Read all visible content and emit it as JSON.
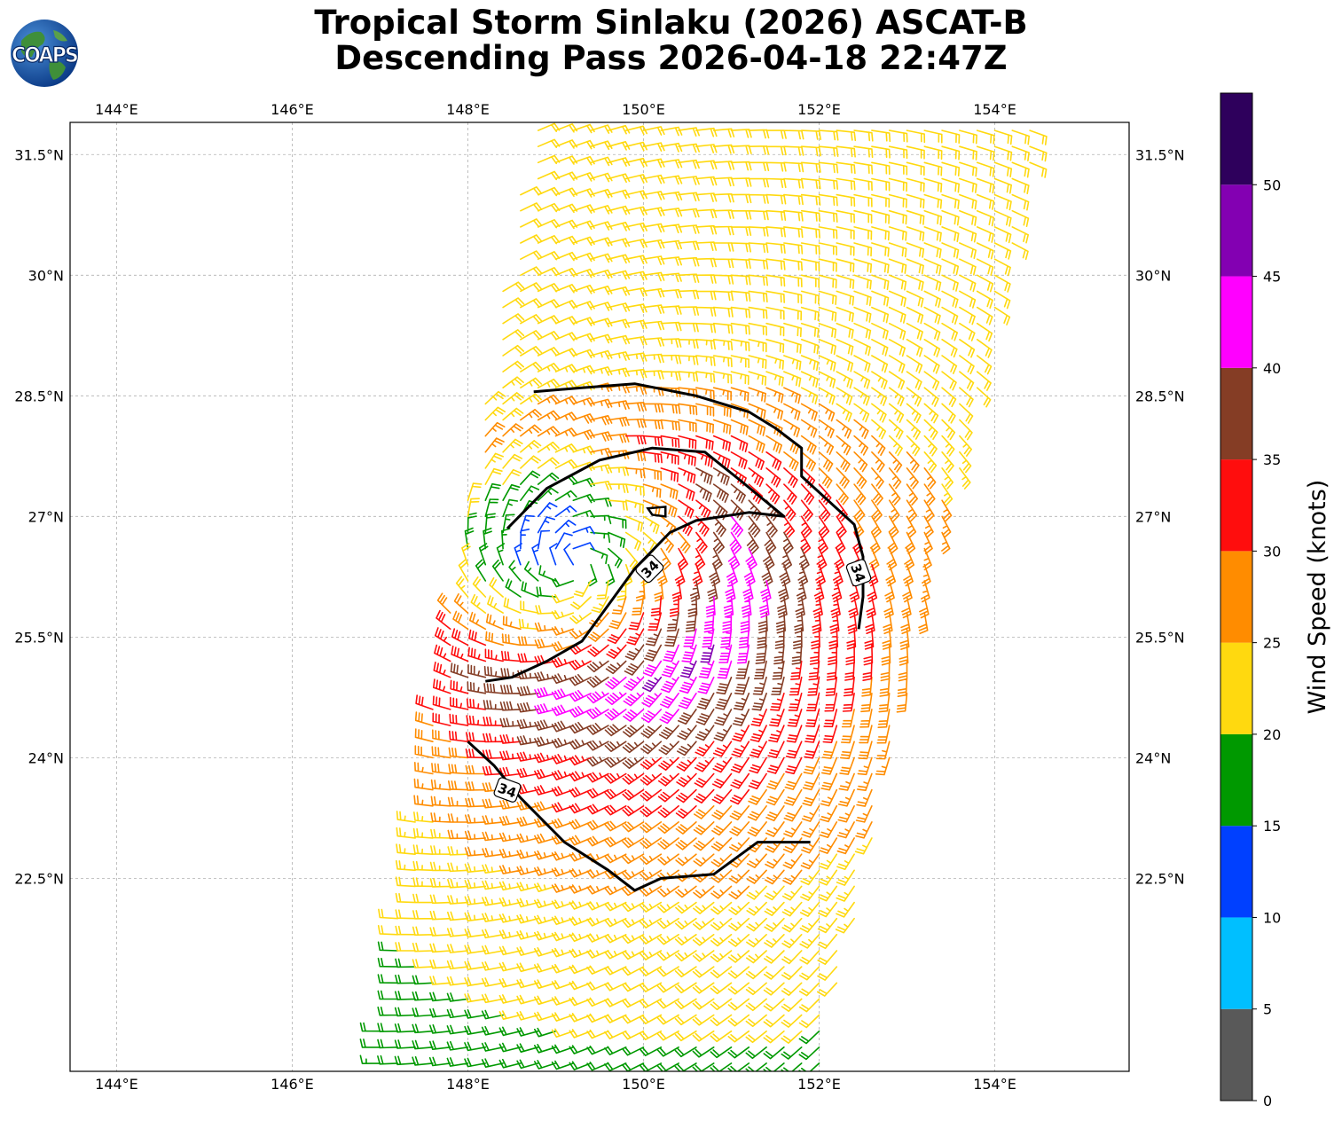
{
  "title": {
    "line1": "Tropical Storm Sinlaku (2026) ASCAT-B",
    "line2": "Descending Pass 2026-04-18 22:47Z"
  },
  "logo": {
    "text": "COAPS",
    "icon": "globe-logo-icon"
  },
  "map": {
    "lon_range": [
      143.47,
      155.53
    ],
    "lat_range": [
      20.1,
      31.9
    ],
    "lon_ticks": [
      {
        "value": 144,
        "label": "144°E"
      },
      {
        "value": 146,
        "label": "146°E"
      },
      {
        "value": 148,
        "label": "148°E"
      },
      {
        "value": 150,
        "label": "150°E"
      },
      {
        "value": 152,
        "label": "152°E"
      },
      {
        "value": 154,
        "label": "154°E"
      }
    ],
    "lat_ticks": [
      {
        "value": 22.5,
        "label": "22.5°N"
      },
      {
        "value": 24,
        "label": "24°N"
      },
      {
        "value": 25.5,
        "label": "25.5°N"
      },
      {
        "value": 27,
        "label": "27°N"
      },
      {
        "value": 28.5,
        "label": "28.5°N"
      },
      {
        "value": 30,
        "label": "30°N"
      },
      {
        "value": 31.5,
        "label": "31.5°N"
      }
    ],
    "gridlines": true,
    "swath_corners": [
      [
        148.7,
        31.8
      ],
      [
        154.5,
        31.8
      ],
      [
        152.0,
        20.1
      ],
      [
        146.9,
        20.1
      ]
    ],
    "storm_center": [
      149.2,
      26.4
    ],
    "storm_radius_of_max_wind_deg": 1.7,
    "contour_34kt_labels": [
      {
        "lon": 150.07,
        "lat": 26.35,
        "text": "34"
      },
      {
        "lon": 152.45,
        "lat": 26.3,
        "text": "34"
      },
      {
        "lon": 148.45,
        "lat": 23.6,
        "text": "34"
      }
    ]
  },
  "colorbar": {
    "label": "Wind Speed (knots)",
    "ticks": [
      "0",
      "5",
      "10",
      "15",
      "20",
      "25",
      "30",
      "35",
      "40",
      "45",
      "50"
    ],
    "tick_values": [
      0,
      5,
      10,
      15,
      20,
      25,
      30,
      35,
      40,
      45,
      50
    ],
    "max": 55,
    "bins": [
      {
        "from": 0,
        "to": 5,
        "color": "#595959"
      },
      {
        "from": 5,
        "to": 10,
        "color": "#00BFFF"
      },
      {
        "from": 10,
        "to": 15,
        "color": "#0040FF"
      },
      {
        "from": 15,
        "to": 20,
        "color": "#009900"
      },
      {
        "from": 20,
        "to": 25,
        "color": "#FFD90F"
      },
      {
        "from": 25,
        "to": 30,
        "color": "#FF8C00"
      },
      {
        "from": 30,
        "to": 35,
        "color": "#FF0D0D"
      },
      {
        "from": 35,
        "to": 40,
        "color": "#853D25"
      },
      {
        "from": 40,
        "to": 45,
        "color": "#FF00FF"
      },
      {
        "from": 45,
        "to": 50,
        "color": "#8300B2"
      },
      {
        "from": 50,
        "to": 55,
        "color": "#2E005C"
      }
    ]
  }
}
